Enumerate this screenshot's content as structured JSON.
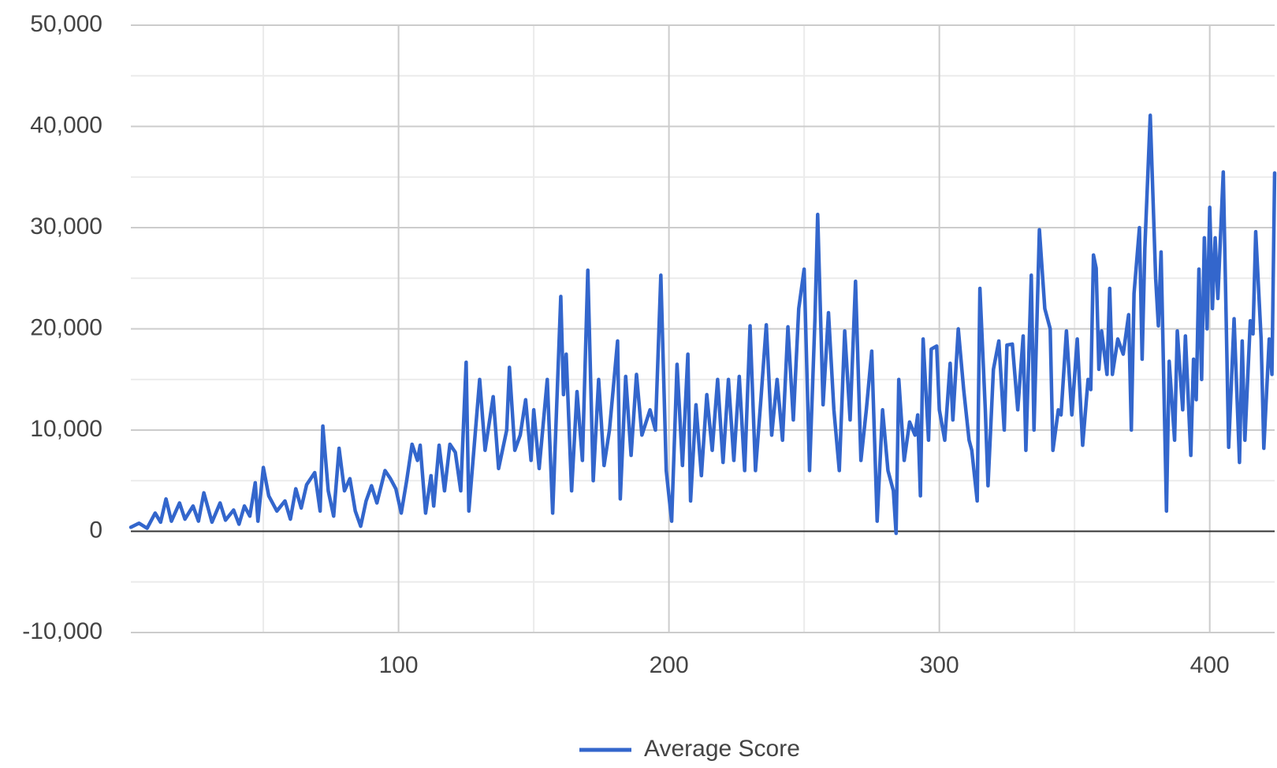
{
  "chart_data": {
    "type": "line",
    "xlim": [
      1,
      424
    ],
    "ylim": [
      -10000,
      50000
    ],
    "xticks": [
      100,
      200,
      300,
      400
    ],
    "yticks": [
      {
        "value": -10000,
        "label": "-10,000"
      },
      0,
      {
        "value": 10000,
        "label": "10,000"
      },
      {
        "value": 20000,
        "label": "20,000"
      },
      {
        "value": 30000,
        "label": "30,000"
      },
      {
        "value": 40000,
        "label": "40,000"
      },
      {
        "value": 50000,
        "label": "50,000"
      }
    ],
    "x_minor_gridlines": [
      50,
      150,
      250,
      350
    ],
    "y_minor_gridlines": [
      -5000,
      5000,
      15000,
      25000,
      35000,
      45000
    ],
    "grid": true,
    "legend": "bottom",
    "x": [
      1,
      4,
      7,
      10,
      12,
      14,
      16,
      19,
      21,
      24,
      26,
      28,
      31,
      34,
      36,
      39,
      41,
      43,
      45,
      47,
      48,
      50,
      52,
      55,
      58,
      60,
      62,
      64,
      66,
      69,
      71,
      72,
      74,
      76,
      78,
      80,
      82,
      84,
      86,
      88,
      90,
      92,
      95,
      97,
      99,
      101,
      103,
      105,
      107,
      108,
      110,
      112,
      113,
      115,
      117,
      119,
      121,
      123,
      125,
      126,
      128,
      130,
      132,
      135,
      137,
      140,
      141,
      143,
      145,
      147,
      149,
      150,
      152,
      155,
      157,
      160,
      161,
      162,
      164,
      166,
      168,
      170,
      172,
      174,
      176,
      178,
      181,
      182,
      184,
      186,
      188,
      190,
      193,
      195,
      197,
      199,
      201,
      203,
      205,
      207,
      208,
      210,
      212,
      214,
      216,
      218,
      220,
      222,
      224,
      226,
      228,
      230,
      232,
      234,
      236,
      238,
      240,
      242,
      244,
      246,
      248,
      250,
      252,
      254,
      255,
      257,
      259,
      261,
      263,
      265,
      267,
      269,
      271,
      273,
      275,
      277,
      279,
      281,
      283,
      284,
      285,
      287,
      289,
      291,
      292,
      293,
      294,
      296,
      297,
      299,
      300,
      302,
      304,
      305,
      307,
      309,
      311,
      312,
      314,
      315,
      317,
      318,
      320,
      322,
      324,
      325,
      327,
      329,
      331,
      332,
      334,
      335,
      337,
      339,
      341,
      342,
      344,
      345,
      347,
      349,
      351,
      353,
      355,
      356,
      357,
      358,
      359,
      360,
      362,
      363,
      364,
      366,
      368,
      370,
      371,
      372,
      374,
      375,
      376,
      378,
      380,
      381,
      382,
      384,
      385,
      387,
      388,
      390,
      391,
      393,
      394,
      395,
      396,
      397,
      398,
      399,
      400,
      401,
      402,
      403,
      405,
      406,
      407,
      409,
      411,
      412,
      413,
      415,
      416,
      417,
      419,
      420,
      422,
      423,
      424
    ],
    "series": [
      {
        "name": "Average Score",
        "color": "#3366cc",
        "values": [
          400,
          800,
          300,
          1800,
          900,
          3200,
          1000,
          2800,
          1200,
          2500,
          1000,
          3800,
          900,
          2800,
          1100,
          2100,
          700,
          2500,
          1500,
          4800,
          1000,
          6300,
          3500,
          2000,
          3000,
          1200,
          4200,
          2300,
          4600,
          5800,
          2000,
          10400,
          4000,
          1500,
          8200,
          4000,
          5200,
          2000,
          500,
          3000,
          4500,
          2800,
          6000,
          5200,
          4200,
          1800,
          5000,
          8600,
          7000,
          8500,
          1800,
          5500,
          2500,
          8500,
          4000,
          8600,
          7800,
          4000,
          16700,
          2000,
          8500,
          15000,
          8000,
          13300,
          6200,
          10000,
          16200,
          8000,
          9500,
          13000,
          7000,
          12000,
          6200,
          15000,
          1800,
          23200,
          13500,
          17500,
          4000,
          13800,
          7000,
          25800,
          5000,
          15000,
          6500,
          10000,
          18800,
          3200,
          15300,
          7500,
          15500,
          9500,
          12000,
          10000,
          25300,
          6000,
          1000,
          16500,
          6500,
          17500,
          3000,
          12500,
          5500,
          13500,
          8000,
          15000,
          6800,
          15000,
          7000,
          15300,
          6000,
          20300,
          6000,
          13000,
          20400,
          9500,
          15000,
          9000,
          20200,
          11000,
          22000,
          25900,
          6000,
          21000,
          31300,
          12500,
          21600,
          12000,
          6000,
          19800,
          11000,
          24700,
          7000,
          12000,
          17800,
          1000,
          12000,
          6000,
          4000,
          -200,
          15000,
          7000,
          10800,
          9500,
          11500,
          3500,
          19000,
          9000,
          18000,
          18300,
          12000,
          9000,
          16600,
          11000,
          20000,
          14000,
          9000,
          8000,
          3000,
          24000,
          12000,
          4500,
          16000,
          18800,
          10000,
          18400,
          18500,
          12000,
          19300,
          8000,
          25300,
          10000,
          29800,
          22000,
          20000,
          8000,
          12000,
          11500,
          19800,
          11500,
          19000,
          8500,
          15000,
          14000,
          27300,
          26000,
          16000,
          19800,
          15500,
          24000,
          15500,
          19000,
          17500,
          21400,
          10000,
          23500,
          30000,
          17000,
          28000,
          41100,
          25000,
          20300,
          27600,
          2000,
          16800,
          9000,
          19800,
          12000,
          19300,
          7500,
          17000,
          13000,
          25900,
          15000,
          29000,
          20000,
          32000,
          22000,
          29000,
          23000,
          35500,
          22000,
          8300,
          21000,
          6800,
          18800,
          9000,
          20800,
          19500,
          29600,
          19000,
          8200,
          19000,
          15500,
          35400
        ]
      }
    ]
  }
}
